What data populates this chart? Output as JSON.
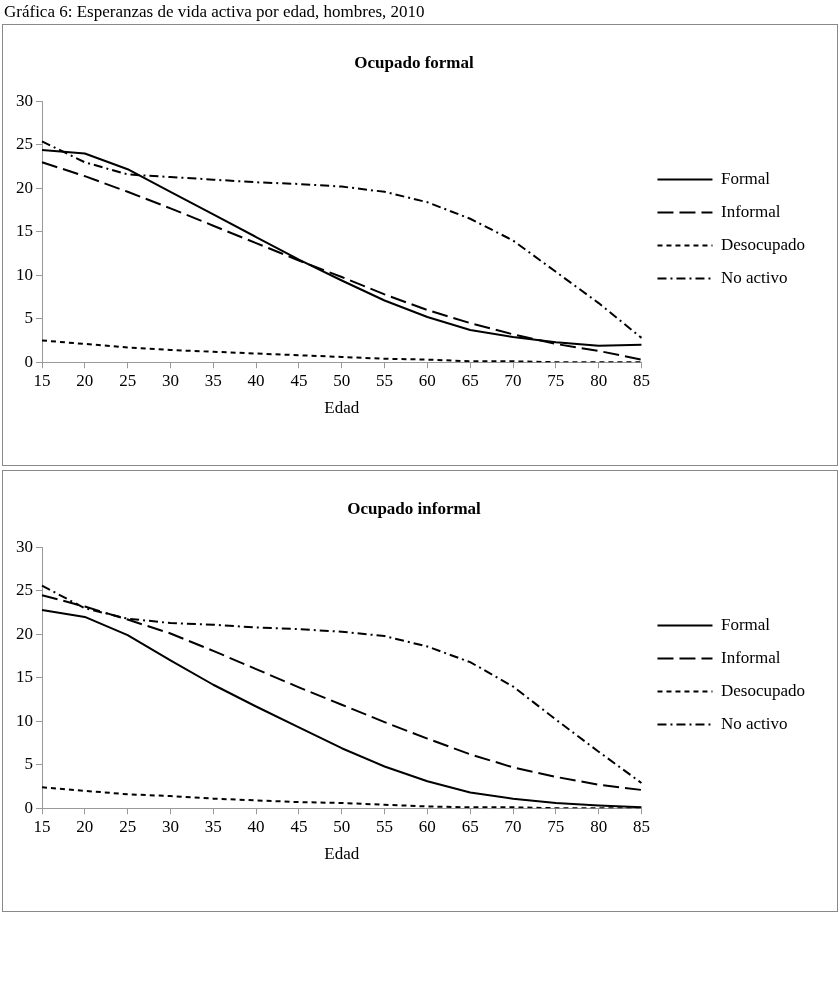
{
  "chart_data": [
    {
      "type": "line",
      "title": "Ocupado formal",
      "xlabel": "Edad",
      "annotations": [
        "Gráfica 6: Esperanzas de vida activa por edad, hombres, 2010"
      ],
      "categories": [
        "15",
        "20",
        "25",
        "30",
        "35",
        "40",
        "45",
        "50",
        "55",
        "60",
        "65",
        "70",
        "75",
        "80",
        "85"
      ],
      "ylim": [
        0,
        30
      ],
      "yticks": [
        0,
        5,
        10,
        15,
        20,
        25,
        30
      ],
      "grid": false,
      "legend": "right",
      "marker": "none",
      "series": [
        {
          "name": "Formal",
          "color": "#000000",
          "line_style": "solid",
          "values": [
            24.4,
            24.0,
            22.2,
            19.6,
            17.0,
            14.4,
            11.8,
            9.4,
            7.1,
            5.2,
            3.7,
            2.9,
            2.3,
            1.9,
            2.0
          ]
        },
        {
          "name": "Informal",
          "color": "#000000",
          "line_style": "dashed",
          "values": [
            23.0,
            21.4,
            19.6,
            17.7,
            15.7,
            13.7,
            11.7,
            9.8,
            7.8,
            6.0,
            4.5,
            3.2,
            2.1,
            1.3,
            0.3
          ]
        },
        {
          "name": "Desocupado",
          "color": "#000000",
          "line_style": "dotted",
          "values": [
            2.5,
            2.1,
            1.7,
            1.4,
            1.2,
            1.0,
            0.8,
            0.6,
            0.4,
            0.3,
            0.1,
            0.1,
            0.0,
            0.0,
            0.0
          ]
        },
        {
          "name": "No activo",
          "color": "#000000",
          "line_style": "dashdot",
          "values": [
            25.4,
            23.0,
            21.6,
            21.3,
            21.0,
            20.7,
            20.5,
            20.2,
            19.6,
            18.4,
            16.5,
            14.0,
            10.4,
            6.8,
            2.8
          ]
        }
      ]
    },
    {
      "type": "line",
      "title": "Ocupado informal",
      "xlabel": "Edad",
      "categories": [
        "15",
        "20",
        "25",
        "30",
        "35",
        "40",
        "45",
        "50",
        "55",
        "60",
        "65",
        "70",
        "75",
        "80",
        "85"
      ],
      "ylim": [
        0,
        30
      ],
      "yticks": [
        0,
        5,
        10,
        15,
        20,
        25,
        30
      ],
      "grid": false,
      "legend": "right",
      "marker": "none",
      "series": [
        {
          "name": "Formal",
          "color": "#000000",
          "line_style": "solid",
          "values": [
            22.8,
            22.0,
            19.9,
            17.0,
            14.2,
            11.7,
            9.3,
            6.9,
            4.8,
            3.1,
            1.8,
            1.1,
            0.6,
            0.3,
            0.1
          ]
        },
        {
          "name": "Informal",
          "color": "#000000",
          "line_style": "dashed",
          "values": [
            24.5,
            23.2,
            21.7,
            20.1,
            18.1,
            16.0,
            13.9,
            11.9,
            9.9,
            8.0,
            6.2,
            4.7,
            3.6,
            2.7,
            2.1
          ]
        },
        {
          "name": "Desocupado",
          "color": "#000000",
          "line_style": "dotted",
          "values": [
            2.4,
            2.0,
            1.6,
            1.4,
            1.1,
            0.9,
            0.7,
            0.6,
            0.4,
            0.2,
            0.1,
            0.1,
            0.0,
            0.0,
            0.0
          ]
        },
        {
          "name": "No activo",
          "color": "#000000",
          "line_style": "dashdot",
          "values": [
            25.6,
            23.0,
            21.8,
            21.3,
            21.1,
            20.8,
            20.6,
            20.3,
            19.8,
            18.6,
            16.8,
            14.0,
            10.2,
            6.5,
            2.9
          ]
        }
      ]
    }
  ]
}
